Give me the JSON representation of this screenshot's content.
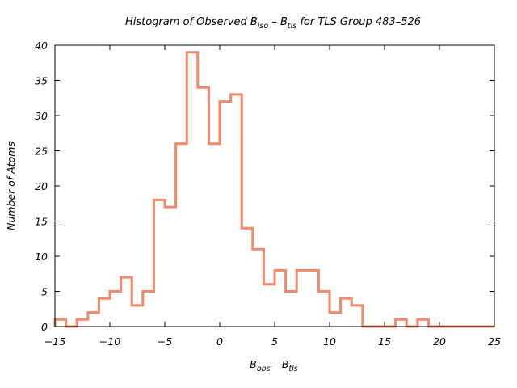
{
  "chart_data": {
    "type": "histogram",
    "title": {
      "prefix": "Histogram of Observed B",
      "sub1": "iso",
      "mid": " – B",
      "sub2": "tls",
      "suffix": " for TLS Group 483–526"
    },
    "xlabel": {
      "main1": "B",
      "sub1": "obs",
      "mid": " – B",
      "sub2": "tls"
    },
    "ylabel": "Number of Atoms",
    "xlim": [
      -15,
      25
    ],
    "ylim": [
      0,
      40
    ],
    "xticks": [
      "−15",
      "−10",
      "−5",
      "0",
      "5",
      "10",
      "15",
      "20",
      "25"
    ],
    "yticks": [
      "0",
      "5",
      "10",
      "15",
      "20",
      "25",
      "30",
      "35",
      "40"
    ],
    "grid": false,
    "line_color": "#f4886a",
    "bin_width": 1,
    "bin_start": -15,
    "counts": [
      1,
      0,
      1,
      2,
      4,
      5,
      7,
      3,
      5,
      18,
      17,
      26,
      39,
      34,
      26,
      32,
      33,
      14,
      11,
      6,
      8,
      5,
      8,
      8,
      5,
      2,
      4,
      3,
      0,
      0,
      0,
      1,
      0,
      1,
      0,
      0,
      0,
      0,
      0,
      0
    ]
  }
}
